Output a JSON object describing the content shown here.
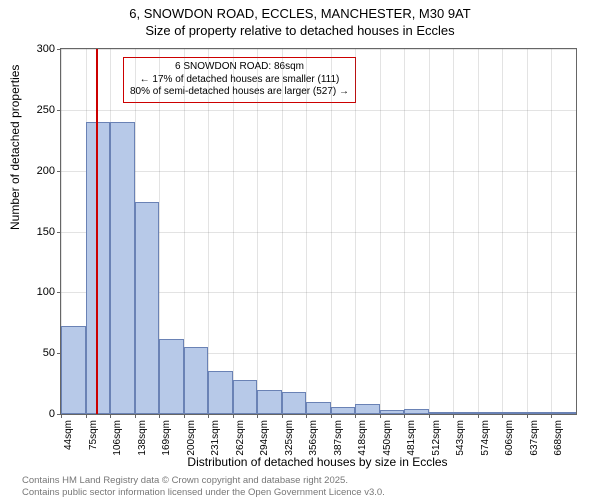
{
  "title": {
    "line1": "6, SNOWDON ROAD, ECCLES, MANCHESTER, M30 9AT",
    "line2": "Size of property relative to detached houses in Eccles"
  },
  "chart": {
    "type": "histogram",
    "ylabel": "Number of detached properties",
    "xlabel": "Distribution of detached houses by size in Eccles",
    "ylim": [
      0,
      300
    ],
    "ytick_step": 50,
    "yticks": [
      0,
      50,
      100,
      150,
      200,
      250,
      300
    ],
    "xticks": [
      "44sqm",
      "75sqm",
      "106sqm",
      "138sqm",
      "169sqm",
      "200sqm",
      "231sqm",
      "262sqm",
      "294sqm",
      "325sqm",
      "356sqm",
      "387sqm",
      "418sqm",
      "450sqm",
      "481sqm",
      "512sqm",
      "543sqm",
      "574sqm",
      "606sqm",
      "637sqm",
      "668sqm"
    ],
    "bars": [
      {
        "value": 72
      },
      {
        "value": 240
      },
      {
        "value": 240
      },
      {
        "value": 174
      },
      {
        "value": 62
      },
      {
        "value": 55
      },
      {
        "value": 35
      },
      {
        "value": 28
      },
      {
        "value": 20
      },
      {
        "value": 18
      },
      {
        "value": 10
      },
      {
        "value": 6
      },
      {
        "value": 8
      },
      {
        "value": 3
      },
      {
        "value": 4
      },
      {
        "value": 2
      },
      {
        "value": 1
      },
      {
        "value": 0
      },
      {
        "value": 0
      },
      {
        "value": 1
      },
      {
        "value": 1
      }
    ],
    "bar_color": "#b7c9e8",
    "bar_border_color": "#6a82b5",
    "background_color": "#ffffff",
    "grid_color": "#666666",
    "grid_opacity": 0.18,
    "marker": {
      "position_sqm": 86,
      "x_range": [
        44,
        668
      ],
      "color": "#cc0000"
    },
    "annotation": {
      "line1": "6 SNOWDON ROAD: 86sqm",
      "line2": "← 17% of detached houses are smaller (111)",
      "line3": "80% of semi-detached houses are larger (527) →",
      "border_color": "#cc0000"
    }
  },
  "footer": {
    "line1": "Contains HM Land Registry data © Crown copyright and database right 2025.",
    "line2": "Contains public sector information licensed under the Open Government Licence v3.0."
  }
}
